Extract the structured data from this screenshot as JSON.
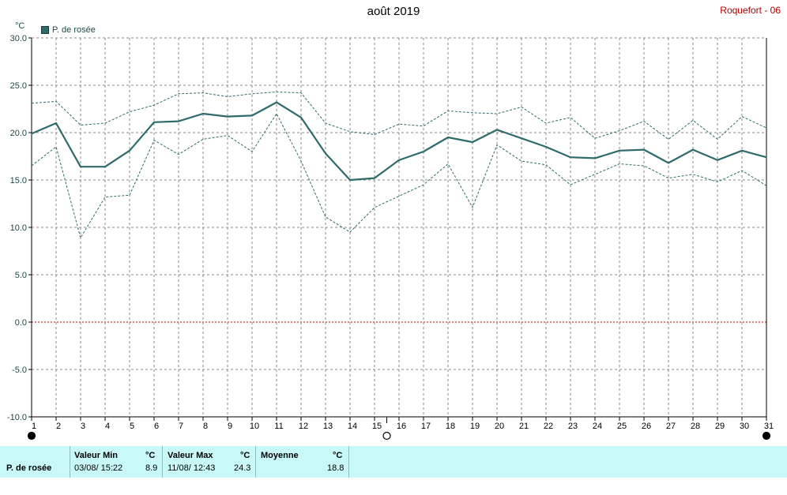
{
  "header": {
    "title": "août 2019",
    "station": "Roquefort - 06"
  },
  "legend": {
    "label": "P. de rosée",
    "color": "#2f6b6b"
  },
  "chart_data": {
    "type": "line",
    "ylabel": "°C",
    "ylim": [
      -10,
      30
    ],
    "yticks": [
      "30.0",
      "25.0",
      "20.0",
      "15.0",
      "10.0",
      "5.0",
      "0.0",
      "-5.0",
      "-10.0"
    ],
    "xlim": [
      1,
      31
    ],
    "xticks": [
      "1",
      "2",
      "3",
      "4",
      "5",
      "6",
      "7",
      "8",
      "9",
      "10",
      "11",
      "12",
      "13",
      "14",
      "15",
      "16",
      "17",
      "18",
      "19",
      "20",
      "21",
      "22",
      "23",
      "24",
      "25",
      "26",
      "27",
      "28",
      "29",
      "30",
      "31"
    ],
    "grid": true,
    "zero_line_color": "#d00000",
    "series": [
      {
        "name": "P. de rosée",
        "role": "mean",
        "color": "#2f6b6b",
        "x": [
          1,
          2,
          3,
          4,
          5,
          6,
          7,
          8,
          9,
          10,
          11,
          12,
          13,
          14,
          15,
          16,
          17,
          18,
          19,
          20,
          21,
          22,
          23,
          24,
          25,
          26,
          27,
          28,
          29,
          30,
          31
        ],
        "values": [
          19.9,
          21.0,
          16.4,
          16.4,
          18.1,
          21.1,
          21.2,
          22.0,
          21.7,
          21.8,
          23.2,
          21.6,
          17.8,
          15.0,
          15.2,
          17.1,
          18.0,
          19.5,
          19.0,
          20.3,
          19.4,
          18.5,
          17.4,
          17.3,
          18.1,
          18.2,
          16.8,
          18.2,
          17.1,
          18.1,
          17.4
        ]
      },
      {
        "role": "max",
        "color": "#2f6b6b",
        "x": [
          1,
          2,
          3,
          4,
          5,
          6,
          7,
          8,
          9,
          10,
          11,
          12,
          13,
          14,
          15,
          16,
          17,
          18,
          19,
          20,
          21,
          22,
          23,
          24,
          25,
          26,
          27,
          28,
          29,
          30,
          31
        ],
        "values": [
          23.1,
          23.3,
          20.8,
          21.0,
          22.2,
          22.9,
          24.1,
          24.2,
          23.8,
          24.1,
          24.3,
          24.2,
          21.0,
          20.1,
          19.8,
          20.9,
          20.7,
          22.3,
          22.1,
          22.0,
          22.7,
          21.0,
          21.6,
          19.4,
          20.2,
          21.2,
          19.3,
          21.3,
          19.3,
          21.7,
          20.5
        ]
      },
      {
        "role": "min",
        "color": "#2f6b6b",
        "x": [
          1,
          2,
          3,
          4,
          5,
          6,
          7,
          8,
          9,
          10,
          11,
          12,
          13,
          14,
          15,
          16,
          17,
          18,
          19,
          20,
          21,
          22,
          23,
          24,
          25,
          26,
          27,
          28,
          29,
          30,
          31
        ],
        "values": [
          16.5,
          18.5,
          8.9,
          13.2,
          13.4,
          19.2,
          17.7,
          19.3,
          19.7,
          18.0,
          22.0,
          17.0,
          11.1,
          9.5,
          12.1,
          13.3,
          14.5,
          16.7,
          12.1,
          18.7,
          17.0,
          16.6,
          14.5,
          15.6,
          16.7,
          16.5,
          15.2,
          15.6,
          14.8,
          16.0,
          14.4
        ]
      }
    ],
    "moon_phases": [
      {
        "day": 1,
        "phase": "new"
      },
      {
        "day": 15.5,
        "phase": "full"
      },
      {
        "day": 31,
        "phase": "new"
      }
    ]
  },
  "stats": {
    "row_label": "P. de rosée",
    "min": {
      "label": "Valeur Min",
      "unit": "°C",
      "date": "03/08/  15:22",
      "value": "8.9"
    },
    "max": {
      "label": "Valeur Max",
      "unit": "°C",
      "date": "11/08/  12:43",
      "value": "24.3"
    },
    "mean": {
      "label": "Moyenne",
      "unit": "°C",
      "value": "18.8"
    }
  }
}
